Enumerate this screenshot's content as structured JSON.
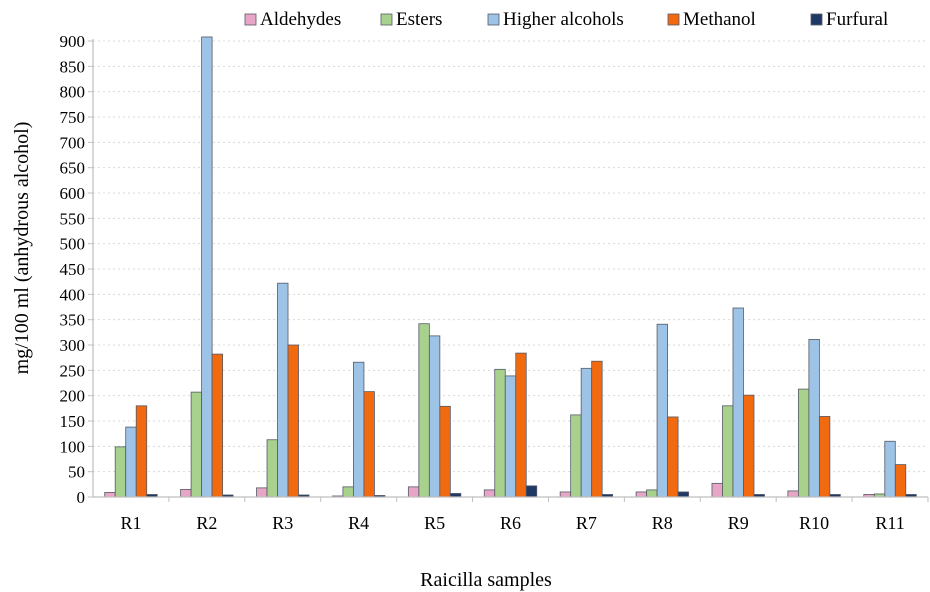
{
  "chart_data": {
    "type": "bar",
    "title": "",
    "xlabel": "Raicilla samples",
    "ylabel": "mg/100 ml  (anhydrous alcohol)",
    "ylim": [
      0,
      900
    ],
    "yticks": [
      0,
      50,
      100,
      150,
      200,
      250,
      300,
      350,
      400,
      450,
      500,
      550,
      600,
      650,
      700,
      750,
      800,
      850,
      900
    ],
    "grid": true,
    "legend_position": "top",
    "categories": [
      "R1",
      "R2",
      "R3",
      "R4",
      "R5",
      "R6",
      "R7",
      "R8",
      "R9",
      "R10",
      "R11"
    ],
    "series": [
      {
        "name": "Aldehydes",
        "color": "#e8a6c6",
        "values": [
          9,
          15,
          18,
          2,
          20,
          14,
          10,
          10,
          27,
          12,
          5
        ]
      },
      {
        "name": "Esters",
        "color": "#a9d18e",
        "values": [
          99,
          207,
          113,
          20,
          342,
          252,
          162,
          14,
          180,
          213,
          6
        ]
      },
      {
        "name": "Higher alcohols",
        "color": "#9dc3e6",
        "values": [
          138,
          908,
          422,
          266,
          318,
          239,
          254,
          341,
          373,
          311,
          110
        ]
      },
      {
        "name": "Methanol",
        "color": "#f26a10",
        "values": [
          180,
          282,
          300,
          208,
          179,
          284,
          268,
          158,
          201,
          159,
          64
        ]
      },
      {
        "name": "Furfural",
        "color": "#1f3864",
        "values": [
          5,
          4,
          4,
          3,
          7,
          22,
          5,
          10,
          5,
          5,
          5
        ]
      }
    ]
  }
}
